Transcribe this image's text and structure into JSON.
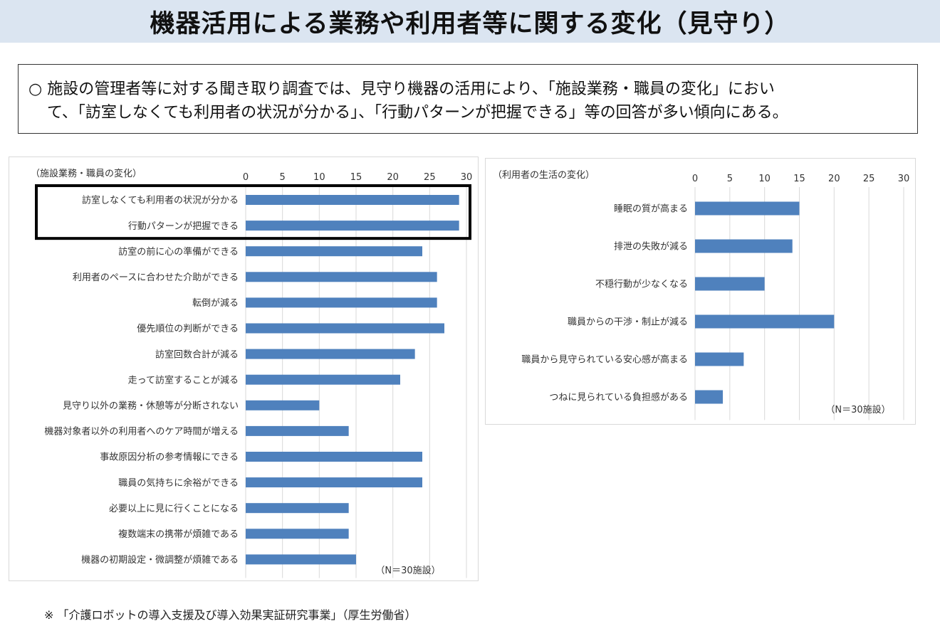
{
  "page": {
    "title": "機器活用による業務や利用者等に関する変化（見守り）",
    "summary_line1": "○  施設の管理者等に対する聞き取り調査では、見守り機器の活用により、「施設業務・職員の変化」におい",
    "summary_line2": "て、「訪室しなくても利用者の状況が分かる」、「行動パターンが把握できる」等の回答が多い傾向にある。",
    "footnote": "※ 「介護ロボットの導入支援及び導入効果実証研究事業」（厚生労働省）"
  },
  "colors": {
    "bar": "#4f81bd",
    "grid": "#d9d9d9",
    "title_band": "#dbe5f1",
    "highlight_border": "#000000"
  },
  "chart_data": [
    {
      "type": "bar",
      "orientation": "horizontal",
      "title": "（施設業務・職員の変化）",
      "note": "（N＝30施設）",
      "categories": [
        "訪室しなくても利用者の状況が分かる",
        "行動パターンが把握できる",
        "訪室の前に心の準備ができる",
        "利用者のペースに合わせた介助ができる",
        "転倒が減る",
        "優先順位の判断ができる",
        "訪室回数合計が減る",
        "走って訪室することが減る",
        "見守り以外の業務・休憩等が分断されない",
        "機器対象者以外の利用者へのケア時間が増える",
        "事故原因分析の参考情報にできる",
        "職員の気持ちに余裕ができる",
        "必要以上に見に行くことになる",
        "複数端末の携帯が煩雑である",
        "機器の初期設定・微調整が煩雑である"
      ],
      "values": [
        29,
        29,
        24,
        26,
        26,
        27,
        23,
        21,
        10,
        14,
        24,
        24,
        14,
        14,
        15
      ],
      "xlim": [
        0,
        30
      ],
      "xticks": [
        0,
        5,
        10,
        15,
        20,
        25,
        30
      ],
      "axis_position": "top",
      "grid": true,
      "highlighted_categories": [
        0,
        1
      ]
    },
    {
      "type": "bar",
      "orientation": "horizontal",
      "title": "（利用者の生活の変化）",
      "note": "（N＝30施設）",
      "categories": [
        "睡眠の質が高まる",
        "排泄の失敗が減る",
        "不穏行動が少なくなる",
        "職員からの干渉・制止が減る",
        "職員から見守られている安心感が高まる",
        "つねに見られている負担感がある"
      ],
      "values": [
        15,
        14,
        10,
        20,
        7,
        4
      ],
      "xlim": [
        0,
        30
      ],
      "xticks": [
        0,
        5,
        10,
        15,
        20,
        25,
        30
      ],
      "axis_position": "top",
      "grid": true
    }
  ]
}
